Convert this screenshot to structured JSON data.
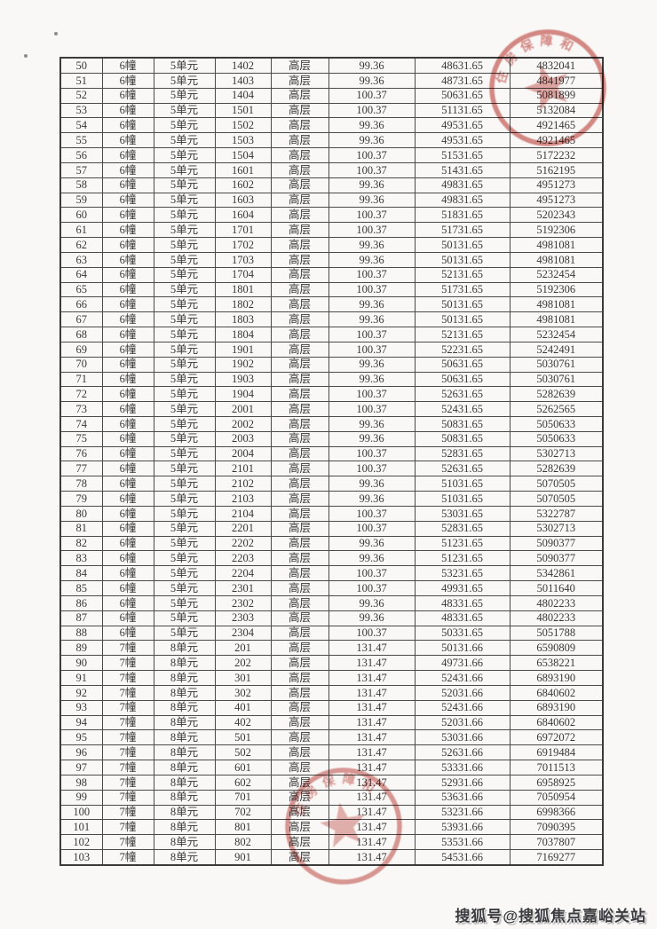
{
  "table": {
    "rows": [
      [
        "50",
        "6幢",
        "5单元",
        "1402",
        "高层",
        "99.36",
        "48631.65",
        "4832041"
      ],
      [
        "51",
        "6幢",
        "5单元",
        "1403",
        "高层",
        "99.36",
        "48731.65",
        "4841977"
      ],
      [
        "52",
        "6幢",
        "5单元",
        "1404",
        "高层",
        "100.37",
        "50631.65",
        "5081899"
      ],
      [
        "53",
        "6幢",
        "5单元",
        "1501",
        "高层",
        "100.37",
        "51131.65",
        "5132084"
      ],
      [
        "54",
        "6幢",
        "5单元",
        "1502",
        "高层",
        "99.36",
        "49531.65",
        "4921465"
      ],
      [
        "55",
        "6幢",
        "5单元",
        "1503",
        "高层",
        "99.36",
        "49531.65",
        "4921465"
      ],
      [
        "56",
        "6幢",
        "5单元",
        "1504",
        "高层",
        "100.37",
        "51531.65",
        "5172232"
      ],
      [
        "57",
        "6幢",
        "5单元",
        "1601",
        "高层",
        "100.37",
        "51431.65",
        "5162195"
      ],
      [
        "58",
        "6幢",
        "5单元",
        "1602",
        "高层",
        "99.36",
        "49831.65",
        "4951273"
      ],
      [
        "59",
        "6幢",
        "5单元",
        "1603",
        "高层",
        "99.36",
        "49831.65",
        "4951273"
      ],
      [
        "60",
        "6幢",
        "5单元",
        "1604",
        "高层",
        "100.37",
        "51831.65",
        "5202343"
      ],
      [
        "61",
        "6幢",
        "5单元",
        "1701",
        "高层",
        "100.37",
        "51731.65",
        "5192306"
      ],
      [
        "62",
        "6幢",
        "5单元",
        "1702",
        "高层",
        "99.36",
        "50131.65",
        "4981081"
      ],
      [
        "63",
        "6幢",
        "5单元",
        "1703",
        "高层",
        "99.36",
        "50131.65",
        "4981081"
      ],
      [
        "64",
        "6幢",
        "5单元",
        "1704",
        "高层",
        "100.37",
        "52131.65",
        "5232454"
      ],
      [
        "65",
        "6幢",
        "5单元",
        "1801",
        "高层",
        "100.37",
        "51731.65",
        "5192306"
      ],
      [
        "66",
        "6幢",
        "5单元",
        "1802",
        "高层",
        "99.36",
        "50131.65",
        "4981081"
      ],
      [
        "67",
        "6幢",
        "5单元",
        "1803",
        "高层",
        "99.36",
        "50131.65",
        "4981081"
      ],
      [
        "68",
        "6幢",
        "5单元",
        "1804",
        "高层",
        "100.37",
        "52131.65",
        "5232454"
      ],
      [
        "69",
        "6幢",
        "5单元",
        "1901",
        "高层",
        "100.37",
        "52231.65",
        "5242491"
      ],
      [
        "70",
        "6幢",
        "5单元",
        "1902",
        "高层",
        "99.36",
        "50631.65",
        "5030761"
      ],
      [
        "71",
        "6幢",
        "5单元",
        "1903",
        "高层",
        "99.36",
        "50631.65",
        "5030761"
      ],
      [
        "72",
        "6幢",
        "5单元",
        "1904",
        "高层",
        "100.37",
        "52631.65",
        "5282639"
      ],
      [
        "73",
        "6幢",
        "5单元",
        "2001",
        "高层",
        "100.37",
        "52431.65",
        "5262565"
      ],
      [
        "74",
        "6幢",
        "5单元",
        "2002",
        "高层",
        "99.36",
        "50831.65",
        "5050633"
      ],
      [
        "75",
        "6幢",
        "5单元",
        "2003",
        "高层",
        "99.36",
        "50831.65",
        "5050633"
      ],
      [
        "76",
        "6幢",
        "5单元",
        "2004",
        "高层",
        "100.37",
        "52831.65",
        "5302713"
      ],
      [
        "77",
        "6幢",
        "5单元",
        "2101",
        "高层",
        "100.37",
        "52631.65",
        "5282639"
      ],
      [
        "78",
        "6幢",
        "5单元",
        "2102",
        "高层",
        "99.36",
        "51031.65",
        "5070505"
      ],
      [
        "79",
        "6幢",
        "5单元",
        "2103",
        "高层",
        "99.36",
        "51031.65",
        "5070505"
      ],
      [
        "80",
        "6幢",
        "5单元",
        "2104",
        "高层",
        "100.37",
        "53031.65",
        "5322787"
      ],
      [
        "81",
        "6幢",
        "5单元",
        "2201",
        "高层",
        "100.37",
        "52831.65",
        "5302713"
      ],
      [
        "82",
        "6幢",
        "5单元",
        "2202",
        "高层",
        "99.36",
        "51231.65",
        "5090377"
      ],
      [
        "83",
        "6幢",
        "5单元",
        "2203",
        "高层",
        "99.36",
        "51231.65",
        "5090377"
      ],
      [
        "84",
        "6幢",
        "5单元",
        "2204",
        "高层",
        "100.37",
        "53231.65",
        "5342861"
      ],
      [
        "85",
        "6幢",
        "5单元",
        "2301",
        "高层",
        "100.37",
        "49931.65",
        "5011640"
      ],
      [
        "86",
        "6幢",
        "5单元",
        "2302",
        "高层",
        "99.36",
        "48331.65",
        "4802233"
      ],
      [
        "87",
        "6幢",
        "5单元",
        "2303",
        "高层",
        "99.36",
        "48331.65",
        "4802233"
      ],
      [
        "88",
        "6幢",
        "5单元",
        "2304",
        "高层",
        "100.37",
        "50331.65",
        "5051788"
      ],
      [
        "89",
        "7幢",
        "8单元",
        "201",
        "高层",
        "131.47",
        "50131.66",
        "6590809"
      ],
      [
        "90",
        "7幢",
        "8单元",
        "202",
        "高层",
        "131.47",
        "49731.66",
        "6538221"
      ],
      [
        "91",
        "7幢",
        "8单元",
        "301",
        "高层",
        "131.47",
        "52431.66",
        "6893190"
      ],
      [
        "92",
        "7幢",
        "8单元",
        "302",
        "高层",
        "131.47",
        "52031.66",
        "6840602"
      ],
      [
        "93",
        "7幢",
        "8单元",
        "401",
        "高层",
        "131.47",
        "52431.66",
        "6893190"
      ],
      [
        "94",
        "7幢",
        "8单元",
        "402",
        "高层",
        "131.47",
        "52031.66",
        "6840602"
      ],
      [
        "95",
        "7幢",
        "8单元",
        "501",
        "高层",
        "131.47",
        "53031.66",
        "6972072"
      ],
      [
        "96",
        "7幢",
        "8单元",
        "502",
        "高层",
        "131.47",
        "52631.66",
        "6919484"
      ],
      [
        "97",
        "7幢",
        "8单元",
        "601",
        "高层",
        "131.47",
        "53331.66",
        "7011513"
      ],
      [
        "98",
        "7幢",
        "8单元",
        "602",
        "高层",
        "131.47",
        "52931.66",
        "6958925"
      ],
      [
        "99",
        "7幢",
        "8单元",
        "701",
        "高层",
        "131.47",
        "53631.66",
        "7050954"
      ],
      [
        "100",
        "7幢",
        "8单元",
        "702",
        "高层",
        "131.47",
        "53231.66",
        "6998366"
      ],
      [
        "101",
        "7幢",
        "8单元",
        "801",
        "高层",
        "131.47",
        "53931.66",
        "7090395"
      ],
      [
        "102",
        "7幢",
        "8单元",
        "802",
        "高层",
        "131.47",
        "53531.66",
        "7037807"
      ],
      [
        "103",
        "7幢",
        "8单元",
        "901",
        "高层",
        "131.47",
        "54531.66",
        "7169277"
      ]
    ]
  },
  "stamps": {
    "seal_red": "#c4504a",
    "top_right": {
      "arc_text": "住房保障和"
    },
    "bottom": {
      "arc_text": "住房保障和"
    }
  },
  "watermark": {
    "text": "搜狐号@搜狐焦点嘉峪关站"
  },
  "colors": {
    "paper": "#f9f8f6",
    "table_border": "#3b3b3b",
    "cell_text": "#383838",
    "watermark_gray": "#3c3c40"
  }
}
